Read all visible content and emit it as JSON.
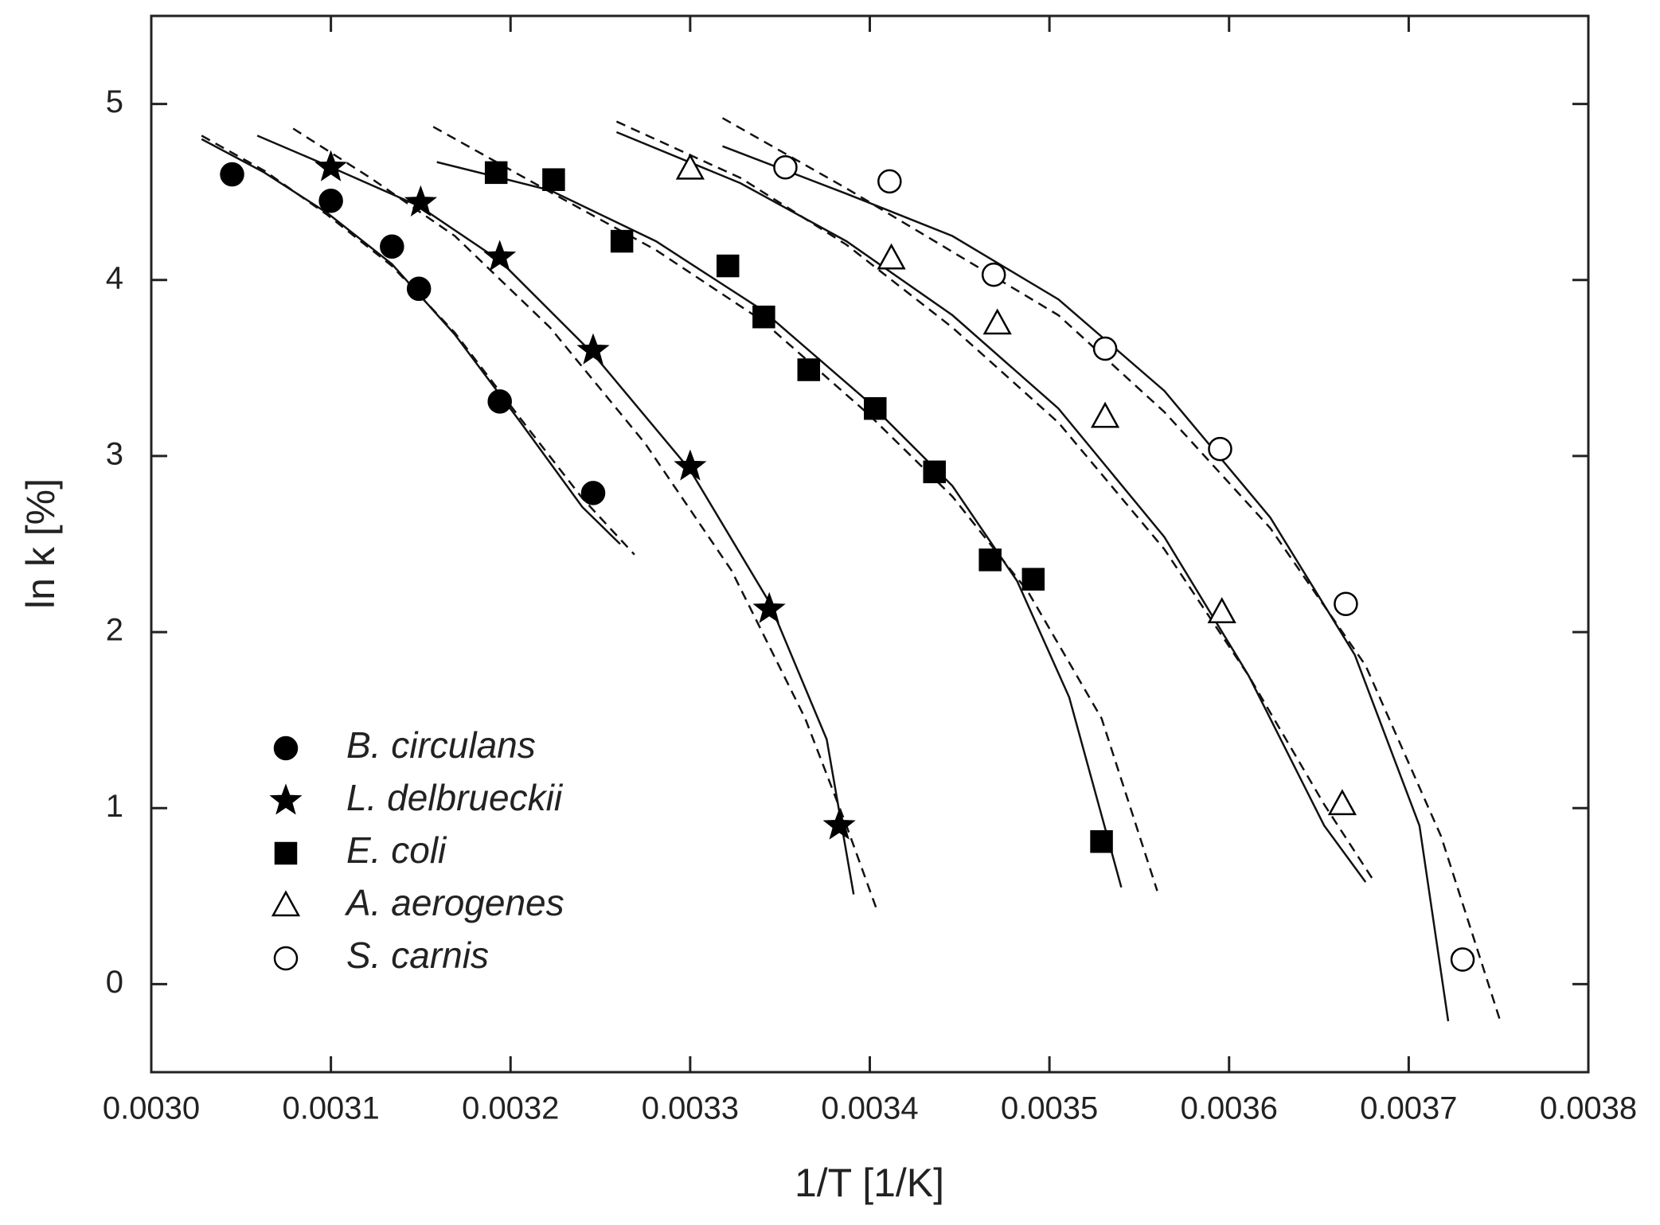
{
  "chart_data": {
    "type": "scatter",
    "xlabel": "1/T [1/K]",
    "ylabel": "ln k  [%]",
    "xlim": [
      0.003,
      0.0038
    ],
    "ylim": [
      -0.5,
      5.5
    ],
    "xticks": [
      {
        "value": 0.003,
        "label": "0.0030"
      },
      {
        "value": 0.0031,
        "label": "0.0031"
      },
      {
        "value": 0.0032,
        "label": "0.0032"
      },
      {
        "value": 0.0033,
        "label": "0.0033"
      },
      {
        "value": 0.0034,
        "label": "0.0034"
      },
      {
        "value": 0.0035,
        "label": "0.0035"
      },
      {
        "value": 0.0036,
        "label": "0.0036"
      },
      {
        "value": 0.0037,
        "label": "0.0037"
      },
      {
        "value": 0.0038,
        "label": "0.0038"
      }
    ],
    "yticks": [
      0,
      1,
      2,
      3,
      4,
      5
    ],
    "legend": "lower-left",
    "series": [
      {
        "name": "B. circulans",
        "marker": "circle",
        "filled": true,
        "color": "#000000",
        "x": [
          0.003045,
          0.0031,
          0.003134,
          0.003149,
          0.003194,
          0.003246
        ],
        "values": [
          4.6,
          4.45,
          4.19,
          3.95,
          3.31,
          2.79
        ],
        "fit_solid": {
          "x": [
            0.003028,
            0.003063,
            0.003098,
            0.003134,
            0.003169,
            0.003205,
            0.00324,
            0.003261
          ],
          "values": [
            4.8,
            4.61,
            4.38,
            4.09,
            3.69,
            3.2,
            2.71,
            2.5
          ]
        },
        "fit_dashed": {
          "x": [
            0.003028,
            0.003063,
            0.003098,
            0.003134,
            0.003169,
            0.003205,
            0.00324,
            0.003269
          ],
          "values": [
            4.82,
            4.62,
            4.37,
            4.08,
            3.7,
            3.22,
            2.76,
            2.44
          ]
        }
      },
      {
        "name": "L. delbrueckii",
        "marker": "star",
        "filled": true,
        "color": "#000000",
        "x": [
          0.0031,
          0.00315,
          0.003194,
          0.003246,
          0.0033,
          0.003344,
          0.003383
        ],
        "values": [
          4.64,
          4.44,
          4.13,
          3.6,
          2.94,
          2.13,
          0.9
        ],
        "fit_solid": {
          "x": [
            0.003059,
            0.003098,
            0.003149,
            0.003194,
            0.003246,
            0.0033,
            0.003344,
            0.003376,
            0.003391
          ],
          "values": [
            4.82,
            4.65,
            4.42,
            4.11,
            3.58,
            2.92,
            2.17,
            1.39,
            0.51
          ]
        },
        "fit_dashed": {
          "x": [
            0.003079,
            0.003122,
            0.003169,
            0.003222,
            0.003275,
            0.003323,
            0.003364,
            0.003387,
            0.003404
          ],
          "values": [
            4.86,
            4.58,
            4.25,
            3.73,
            3.07,
            2.35,
            1.51,
            0.9,
            0.42
          ]
        }
      },
      {
        "name": "E. coli",
        "marker": "square",
        "filled": true,
        "color": "#000000",
        "x": [
          0.003192,
          0.003224,
          0.003262,
          0.003321,
          0.003341,
          0.003366,
          0.003403,
          0.003436,
          0.003467,
          0.003491,
          0.003529
        ],
        "values": [
          4.61,
          4.57,
          4.22,
          4.08,
          3.79,
          3.49,
          3.27,
          2.91,
          2.41,
          2.3,
          0.81
        ],
        "fit_solid": {
          "x": [
            0.003159,
            0.003222,
            0.003281,
            0.00334,
            0.003399,
            0.003446,
            0.003482,
            0.003511,
            0.00354
          ],
          "values": [
            4.67,
            4.51,
            4.22,
            3.83,
            3.31,
            2.83,
            2.29,
            1.63,
            0.55
          ]
        },
        "fit_dashed": {
          "x": [
            0.003157,
            0.003222,
            0.003281,
            0.00334,
            0.003399,
            0.003446,
            0.003488,
            0.003529,
            0.00356
          ],
          "values": [
            4.87,
            4.5,
            4.17,
            3.77,
            3.24,
            2.77,
            2.23,
            1.51,
            0.53
          ]
        }
      },
      {
        "name": "A. aerogenes",
        "marker": "triangle",
        "filled": false,
        "color": "#000000",
        "x": [
          0.0033,
          0.003412,
          0.003471,
          0.003531,
          0.003596,
          0.003663
        ],
        "values": [
          4.63,
          4.12,
          3.75,
          3.22,
          2.11,
          1.02
        ],
        "fit_solid": {
          "x": [
            0.003259,
            0.003328,
            0.003387,
            0.003446,
            0.003505,
            0.003564,
            0.003611,
            0.003653,
            0.003676
          ],
          "values": [
            4.84,
            4.55,
            4.22,
            3.8,
            3.27,
            2.54,
            1.75,
            0.9,
            0.58
          ]
        },
        "fit_dashed": {
          "x": [
            0.003259,
            0.003328,
            0.003387,
            0.003446,
            0.003505,
            0.003564,
            0.003611,
            0.003653,
            0.003681
          ],
          "values": [
            4.9,
            4.58,
            4.2,
            3.73,
            3.19,
            2.47,
            1.75,
            1.02,
            0.58
          ]
        }
      },
      {
        "name": "S. carnis",
        "marker": "circle",
        "filled": false,
        "color": "#000000",
        "x": [
          0.003353,
          0.003411,
          0.003469,
          0.003531,
          0.003595,
          0.003665,
          0.00373
        ],
        "values": [
          4.64,
          4.56,
          4.03,
          3.61,
          3.04,
          2.16,
          0.14
        ],
        "fit_solid": {
          "x": [
            0.003318,
            0.003387,
            0.003446,
            0.003505,
            0.003564,
            0.003623,
            0.00367,
            0.003706,
            0.003722
          ],
          "values": [
            4.76,
            4.49,
            4.25,
            3.89,
            3.37,
            2.65,
            1.87,
            0.9,
            -0.21
          ]
        },
        "fit_dashed": {
          "x": [
            0.003318,
            0.003387,
            0.003446,
            0.003505,
            0.003564,
            0.003623,
            0.003676,
            0.003718,
            0.003751
          ],
          "values": [
            4.92,
            4.52,
            4.16,
            3.8,
            3.25,
            2.59,
            1.81,
            0.84,
            -0.21
          ]
        }
      }
    ]
  }
}
